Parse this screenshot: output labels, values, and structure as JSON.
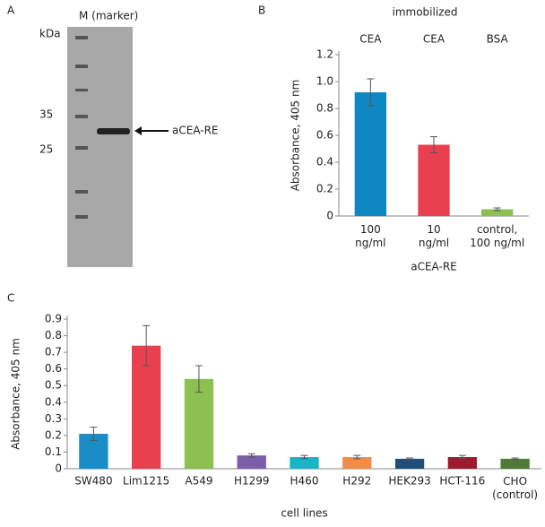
{
  "gel": {
    "label": "A",
    "lane_label": "M (marker)",
    "unit": "kDa",
    "markers": [
      "35",
      "25"
    ],
    "band_label": "aCEA-RE"
  },
  "chart_data": [
    {
      "type": "bar",
      "label": "B",
      "header": "immobilized",
      "top_labels": [
        "CEA",
        "CEA",
        "BSA"
      ],
      "categories": [
        "100\nng/ml",
        "10\nng/ml",
        "control,\n100 ng/ml"
      ],
      "values": [
        0.92,
        0.53,
        0.05
      ],
      "errors": [
        0.1,
        0.06,
        0.01
      ],
      "colors": [
        "#0e86c2",
        "#e8404e",
        "#8cc152"
      ],
      "ylabel": "Absorbance, 405 nm",
      "xlabel": "aCEA-RE",
      "ylim": [
        0,
        1.2
      ],
      "yticks": [
        0,
        0.2,
        0.4,
        0.6,
        0.8,
        {
          "value": 1,
          "label": "1.0"
        },
        1.2
      ]
    },
    {
      "type": "bar",
      "label": "C",
      "categories": [
        "SW480",
        "Lim1215",
        "A549",
        "H1299",
        "H460",
        "H292",
        "HEK293",
        "HCT-116",
        "CHO\n(control)"
      ],
      "values": [
        0.21,
        0.74,
        0.54,
        0.08,
        0.07,
        0.07,
        0.06,
        0.07,
        0.06
      ],
      "errors": [
        0.04,
        0.12,
        0.08,
        0.01,
        0.01,
        0.01,
        0.005,
        0.01,
        0.005
      ],
      "colors": [
        "#1a8cc6",
        "#e8404e",
        "#8cc152",
        "#7b5ea7",
        "#1cb3c8",
        "#f08c4a",
        "#1f4e79",
        "#9b1c2e",
        "#4f7a3a"
      ],
      "ylabel": "Absorbance, 405 nm",
      "xlabel": "cell lines",
      "ylim": [
        0,
        0.9
      ],
      "yticks": [
        0,
        0.1,
        0.2,
        0.3,
        0.4,
        0.5,
        0.6,
        0.7,
        0.8,
        0.9
      ]
    }
  ]
}
